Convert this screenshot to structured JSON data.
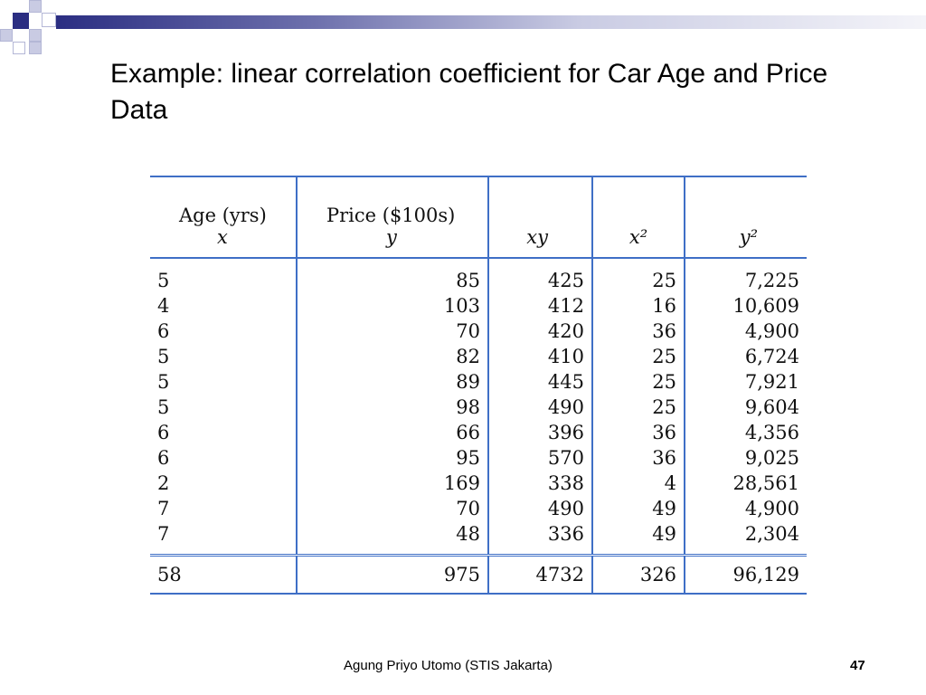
{
  "slide": {
    "title": "Example:  linear correlation coefficient for Car Age and Price Data",
    "footer": "Agung Priyo Utomo (STIS Jakarta)",
    "page_number": "47",
    "accent_color": "#2b2e82",
    "table_rule_color": "#3f6fc6"
  },
  "table": {
    "headers": [
      {
        "line1": "Age  (yrs)",
        "line2": "x"
      },
      {
        "line1": "Price  ($100s)",
        "line2": "y"
      },
      {
        "line1": "",
        "line2": "xy"
      },
      {
        "line1": "",
        "line2": "x²"
      },
      {
        "line1": "",
        "line2": "y²"
      }
    ],
    "rows": [
      [
        "5",
        "85",
        "425",
        "25",
        "7,225"
      ],
      [
        "4",
        "103",
        "412",
        "16",
        "10,609"
      ],
      [
        "6",
        "70",
        "420",
        "36",
        "4,900"
      ],
      [
        "5",
        "82",
        "410",
        "25",
        "6,724"
      ],
      [
        "5",
        "89",
        "445",
        "25",
        "7,921"
      ],
      [
        "5",
        "98",
        "490",
        "25",
        "9,604"
      ],
      [
        "6",
        "66",
        "396",
        "36",
        "4,356"
      ],
      [
        "6",
        "95",
        "570",
        "36",
        "9,025"
      ],
      [
        "2",
        "169",
        "338",
        "4",
        "28,561"
      ],
      [
        "7",
        "70",
        "490",
        "49",
        "4,900"
      ],
      [
        "7",
        "48",
        "336",
        "49",
        "2,304"
      ]
    ],
    "totals": [
      "58",
      "975",
      "4732",
      "326",
      "96,129"
    ]
  }
}
